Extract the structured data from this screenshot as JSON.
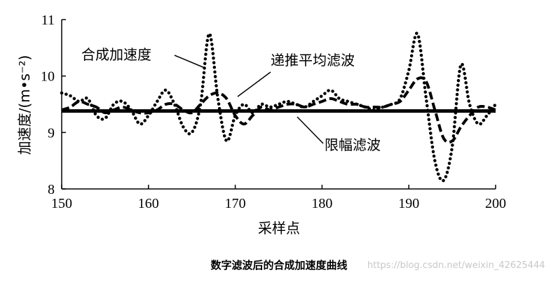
{
  "chart_data": {
    "type": "line",
    "title": "",
    "xlabel": "采样点",
    "ylabel": "加速度/(m•s⁻²)",
    "xlim": [
      150,
      200
    ],
    "ylim": [
      8,
      11
    ],
    "xticks": [
      150,
      160,
      170,
      180,
      190,
      200
    ],
    "yticks": [
      8,
      9,
      10,
      11
    ],
    "grid": false,
    "series": [
      {
        "name": "合成加速度",
        "style": "dotted",
        "x": [
          150,
          151,
          152,
          153,
          154,
          155,
          156,
          157,
          158,
          159,
          160,
          161,
          162,
          163,
          164,
          165,
          166,
          167,
          168,
          169,
          170,
          171,
          172,
          173,
          174,
          175,
          176,
          177,
          178,
          179,
          180,
          181,
          182,
          183,
          184,
          185,
          186,
          187,
          188,
          189,
          190,
          191,
          192,
          193,
          194,
          195,
          196,
          197,
          198,
          199,
          200
        ],
        "y": [
          9.7,
          9.65,
          9.55,
          9.6,
          9.3,
          9.25,
          9.5,
          9.55,
          9.4,
          9.15,
          9.3,
          9.55,
          9.75,
          9.5,
          9.1,
          9.0,
          9.5,
          10.75,
          9.6,
          8.85,
          9.3,
          9.5,
          9.35,
          9.5,
          9.45,
          9.5,
          9.55,
          9.5,
          9.45,
          9.55,
          9.65,
          9.75,
          9.6,
          9.55,
          9.5,
          9.45,
          9.4,
          9.45,
          9.5,
          9.6,
          10.1,
          10.75,
          9.6,
          8.5,
          8.15,
          8.75,
          10.2,
          9.5,
          9.15,
          9.3,
          9.5
        ]
      },
      {
        "name": "递推平均滤波",
        "style": "dashed",
        "x": [
          150,
          151,
          152,
          153,
          154,
          155,
          156,
          157,
          158,
          159,
          160,
          161,
          162,
          163,
          164,
          165,
          166,
          167,
          168,
          169,
          170,
          171,
          172,
          173,
          174,
          175,
          176,
          177,
          178,
          179,
          180,
          181,
          182,
          183,
          184,
          185,
          186,
          187,
          188,
          189,
          190,
          191,
          192,
          193,
          194,
          195,
          196,
          197,
          198,
          199,
          200
        ],
        "y": [
          9.4,
          9.45,
          9.55,
          9.5,
          9.45,
          9.35,
          9.4,
          9.45,
          9.4,
          9.35,
          9.35,
          9.4,
          9.5,
          9.5,
          9.4,
          9.35,
          9.5,
          9.65,
          9.7,
          9.6,
          9.3,
          9.15,
          9.3,
          9.45,
          9.4,
          9.45,
          9.5,
          9.5,
          9.45,
          9.5,
          9.55,
          9.6,
          9.55,
          9.5,
          9.5,
          9.45,
          9.45,
          9.45,
          9.5,
          9.55,
          9.75,
          9.95,
          9.9,
          9.4,
          8.9,
          8.85,
          9.1,
          9.3,
          9.45,
          9.45,
          9.4
        ]
      },
      {
        "name": "限幅滤波",
        "style": "solid",
        "x": [
          150,
          200
        ],
        "y": [
          9.38,
          9.38
        ]
      }
    ]
  },
  "caption": "数字滤波后的合成加速度曲线",
  "watermark": "https://blog.csdn.net/weixin_42625444"
}
